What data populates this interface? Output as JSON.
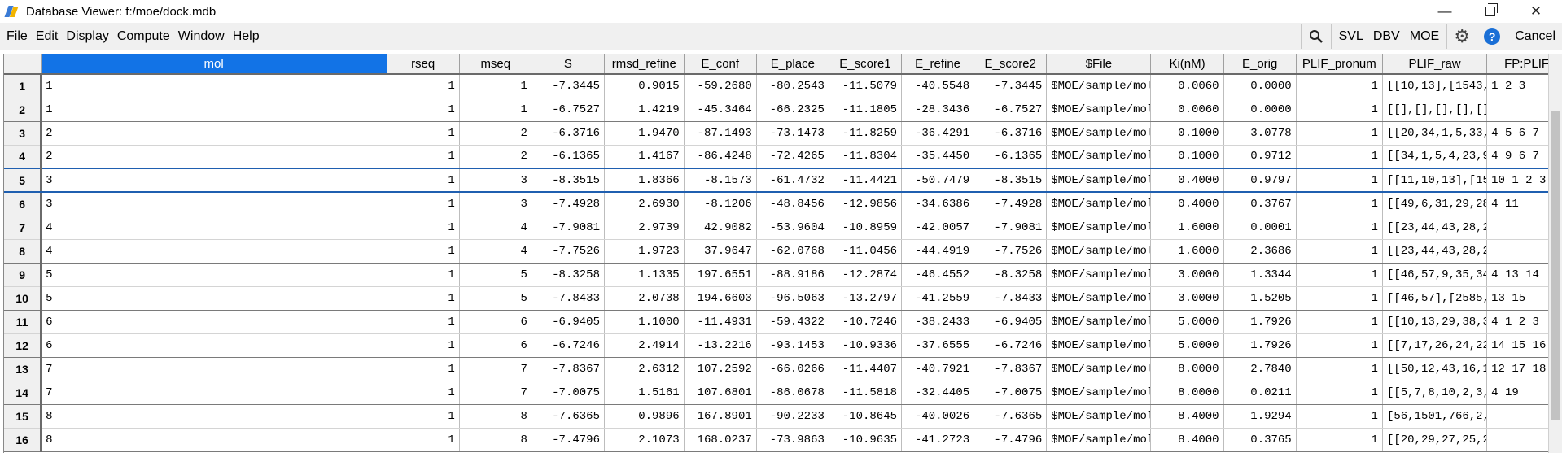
{
  "window": {
    "title": "Database Viewer: f:/moe/dock.mdb",
    "min_glyph": "—",
    "close_glyph": "✕"
  },
  "menu": [
    {
      "label": "File",
      "key": "F",
      "rest": "ile"
    },
    {
      "label": "Edit",
      "key": "E",
      "rest": "dit"
    },
    {
      "label": "Display",
      "key": "D",
      "rest": "isplay"
    },
    {
      "label": "Compute",
      "key": "C",
      "rest": "ompute"
    },
    {
      "label": "Window",
      "key": "W",
      "rest": "indow"
    },
    {
      "label": "Help",
      "key": "H",
      "rest": "elp"
    }
  ],
  "toolbar": {
    "search_glyph": "🔍",
    "svl": "SVL",
    "dbv": "DBV",
    "moe": "MOE",
    "gear_glyph": "⚙",
    "help_glyph": "?",
    "cancel": "Cancel"
  },
  "table": {
    "selected_column": "mol",
    "selected_row": 5,
    "columns": [
      "mol",
      "rseq",
      "mseq",
      "S",
      "rmsd_refine",
      "E_conf",
      "E_place",
      "E_score1",
      "E_refine",
      "E_score2",
      "$File",
      "Ki(nM)",
      "E_orig",
      "PLIF_pronum",
      "PLIF_raw",
      "FP:PLIF"
    ],
    "rows": [
      {
        "n": "1",
        "c": [
          "1",
          "1",
          "1",
          "-7.3445",
          "0.9015",
          "-59.2680",
          "-80.2543",
          "-11.5079",
          "-40.5548",
          "-7.3445",
          "$MOE/sample/mol",
          "0.0060",
          "0.0000",
          "1",
          "[[10,13],[1543,",
          "1 2 3"
        ]
      },
      {
        "n": "2",
        "c": [
          "1",
          "1",
          "1",
          "-6.7527",
          "1.4219",
          "-45.3464",
          "-66.2325",
          "-11.1805",
          "-28.3436",
          "-6.7527",
          "$MOE/sample/mol",
          "0.0060",
          "0.0000",
          "1",
          "[[],[],[],[],[]",
          ""
        ]
      },
      {
        "n": "3",
        "c": [
          "2",
          "1",
          "2",
          "-6.3716",
          "1.9470",
          "-87.1493",
          "-73.1473",
          "-11.8259",
          "-36.4291",
          "-6.3716",
          "$MOE/sample/mol",
          "0.1000",
          "3.0778",
          "1",
          "[[20,34,1,5,33,",
          "4 5 6 7"
        ]
      },
      {
        "n": "4",
        "c": [
          "2",
          "1",
          "2",
          "-6.1365",
          "1.4167",
          "-86.4248",
          "-72.4265",
          "-11.8304",
          "-35.4450",
          "-6.1365",
          "$MOE/sample/mol",
          "0.1000",
          "0.9712",
          "1",
          "[[34,1,5,4,23,9",
          "4 9 6 7"
        ]
      },
      {
        "n": "5",
        "c": [
          "3",
          "1",
          "3",
          "-8.3515",
          "1.8366",
          "-8.1573",
          "-61.4732",
          "-11.4421",
          "-50.7479",
          "-8.3515",
          "$MOE/sample/mol",
          "0.4000",
          "0.9797",
          "1",
          "[[11,10,13],[15",
          "10 1 2 3"
        ]
      },
      {
        "n": "6",
        "c": [
          "3",
          "1",
          "3",
          "-7.4928",
          "2.6930",
          "-8.1206",
          "-48.8456",
          "-12.9856",
          "-34.6386",
          "-7.4928",
          "$MOE/sample/mol",
          "0.4000",
          "0.3767",
          "1",
          "[[49,6,31,29,28",
          "4 11"
        ]
      },
      {
        "n": "7",
        "c": [
          "4",
          "1",
          "4",
          "-7.9081",
          "2.9739",
          "42.9082",
          "-53.9604",
          "-10.8959",
          "-42.0057",
          "-7.9081",
          "$MOE/sample/mol",
          "1.6000",
          "0.0001",
          "1",
          "[[23,44,43,28,2",
          ""
        ]
      },
      {
        "n": "8",
        "c": [
          "4",
          "1",
          "4",
          "-7.7526",
          "1.9723",
          "37.9647",
          "-62.0768",
          "-11.0456",
          "-44.4919",
          "-7.7526",
          "$MOE/sample/mol",
          "1.6000",
          "2.3686",
          "1",
          "[[23,44,43,28,2",
          ""
        ]
      },
      {
        "n": "9",
        "c": [
          "5",
          "1",
          "5",
          "-8.3258",
          "1.1335",
          "197.6551",
          "-88.9186",
          "-12.2874",
          "-46.4552",
          "-8.3258",
          "$MOE/sample/mol",
          "3.0000",
          "1.3344",
          "1",
          "[[46,57,9,35,34",
          "4 13 14"
        ]
      },
      {
        "n": "10",
        "c": [
          "5",
          "1",
          "5",
          "-7.8433",
          "2.0738",
          "194.6603",
          "-96.5063",
          "-13.2797",
          "-41.2559",
          "-7.8433",
          "$MOE/sample/mol",
          "3.0000",
          "1.5205",
          "1",
          "[[46,57],[2585,",
          "13 15"
        ]
      },
      {
        "n": "11",
        "c": [
          "6",
          "1",
          "6",
          "-6.9405",
          "1.1000",
          "-11.4931",
          "-59.4322",
          "-10.7246",
          "-38.2433",
          "-6.9405",
          "$MOE/sample/mol",
          "5.0000",
          "1.7926",
          "1",
          "[[10,13,29,38,3",
          "4 1 2 3"
        ]
      },
      {
        "n": "12",
        "c": [
          "6",
          "1",
          "6",
          "-6.7246",
          "2.4914",
          "-13.2216",
          "-93.1453",
          "-10.9336",
          "-37.6555",
          "-6.7246",
          "$MOE/sample/mol",
          "5.0000",
          "1.7926",
          "1",
          "[[7,17,26,24,22",
          "14 15 16"
        ]
      },
      {
        "n": "13",
        "c": [
          "7",
          "1",
          "7",
          "-7.8367",
          "2.6312",
          "107.2592",
          "-66.0266",
          "-11.4407",
          "-40.7921",
          "-7.8367",
          "$MOE/sample/mol",
          "8.0000",
          "2.7840",
          "1",
          "[[50,12,43,16,1",
          "12 17 18"
        ]
      },
      {
        "n": "14",
        "c": [
          "7",
          "1",
          "7",
          "-7.0075",
          "1.5161",
          "107.6801",
          "-86.0678",
          "-11.5818",
          "-32.4405",
          "-7.0075",
          "$MOE/sample/mol",
          "8.0000",
          "0.0211",
          "1",
          "[[5,7,8,10,2,3,",
          "4 19"
        ]
      },
      {
        "n": "15",
        "c": [
          "8",
          "1",
          "8",
          "-7.6365",
          "0.9896",
          "167.8901",
          "-90.2233",
          "-10.8645",
          "-40.0026",
          "-7.6365",
          "$MOE/sample/mol",
          "8.4000",
          "1.9294",
          "1",
          "[56,1501,766,2,",
          ""
        ]
      },
      {
        "n": "16",
        "c": [
          "8",
          "1",
          "8",
          "-7.4796",
          "2.1073",
          "168.0237",
          "-73.9863",
          "-10.9635",
          "-41.2723",
          "-7.4796",
          "$MOE/sample/mol",
          "8.4000",
          "0.3765",
          "1",
          "[[20,29,27,25,2",
          ""
        ]
      }
    ]
  }
}
